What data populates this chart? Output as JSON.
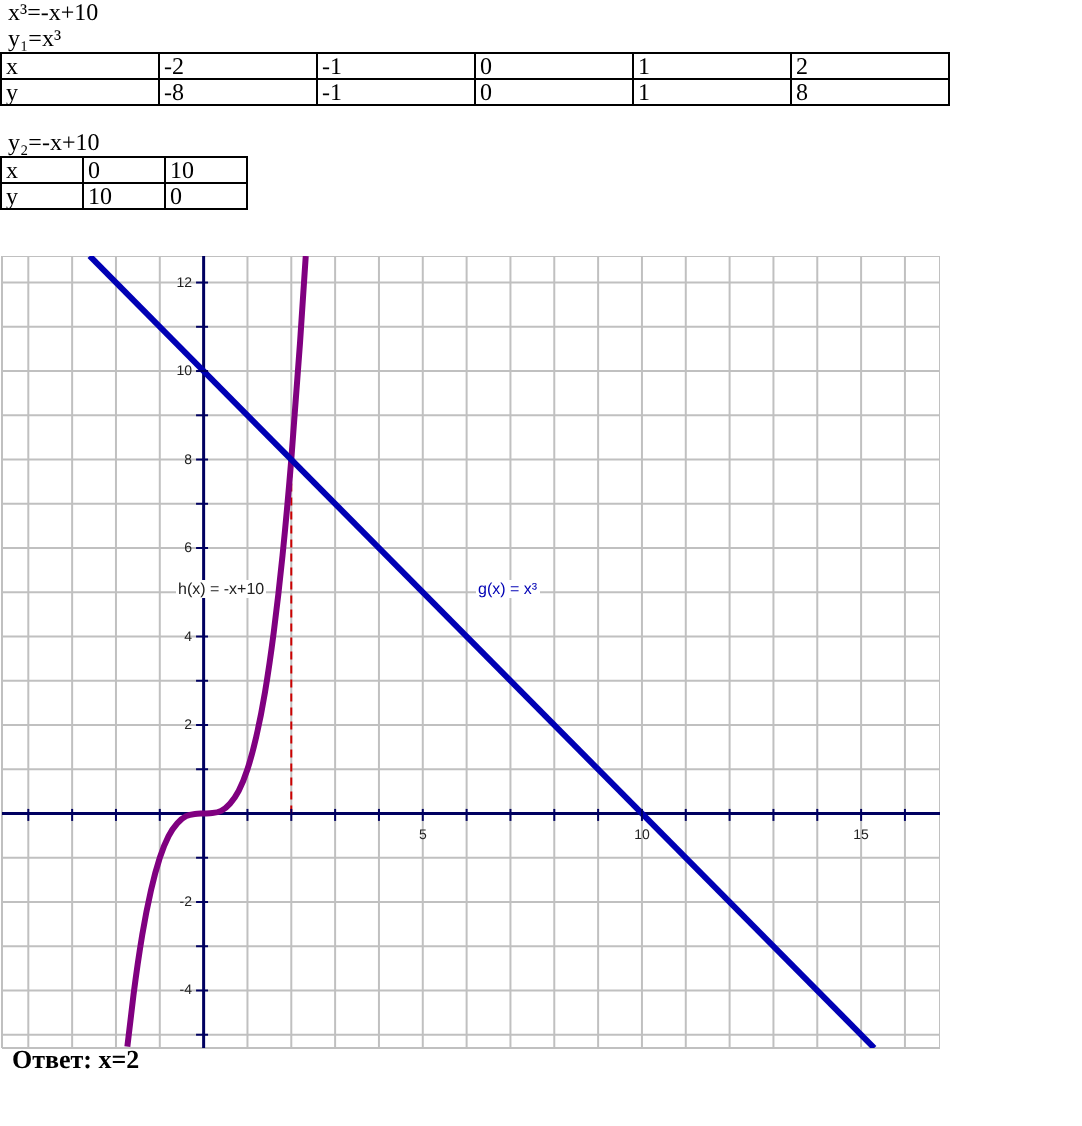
{
  "chart_data": {
    "type": "line",
    "grid": true,
    "legend": false,
    "marker": "none",
    "line_style": "solid",
    "xlim": [
      -4.6,
      16.8
    ],
    "xticks": [
      {
        "value": -4,
        "label": null
      },
      {
        "value": -3,
        "label": null
      },
      {
        "value": -2,
        "label": null
      },
      {
        "value": -1,
        "label": null
      },
      {
        "value": 1,
        "label": null
      },
      {
        "value": 2,
        "label": null
      },
      {
        "value": 3,
        "label": null
      },
      {
        "value": 4,
        "label": null
      },
      5,
      {
        "value": 6,
        "label": null
      },
      {
        "value": 7,
        "label": null
      },
      {
        "value": 8,
        "label": null
      },
      {
        "value": 9,
        "label": null
      },
      10,
      {
        "value": 11,
        "label": null
      },
      {
        "value": 12,
        "label": null
      },
      {
        "value": 13,
        "label": null
      },
      {
        "value": 14,
        "label": null
      },
      15,
      {
        "value": 16,
        "label": null
      }
    ],
    "ylim": [
      -5.3,
      12.6
    ],
    "yticks": [
      {
        "value": -5,
        "label": null
      },
      -4,
      {
        "value": -3,
        "label": null
      },
      -2,
      {
        "value": -1,
        "label": null
      },
      {
        "value": 1,
        "label": null
      },
      2,
      {
        "value": 3,
        "label": null
      },
      4,
      {
        "value": 5,
        "label": null
      },
      6,
      {
        "value": 7,
        "label": null
      },
      8,
      {
        "value": 9,
        "label": null
      },
      10,
      {
        "value": 11,
        "label": null
      },
      12
    ],
    "series": [
      {
        "color": "#800080",
        "x": [
          -1.74,
          -1.6,
          -1.4,
          -1.2,
          -1,
          -0.8,
          -0.6,
          -0.4,
          -0.2,
          0,
          0.2,
          0.4,
          0.6,
          0.8,
          1,
          1.2,
          1.4,
          1.6,
          1.8,
          2,
          2.2,
          2.33
        ],
        "values": [
          -5.27,
          -4.1,
          -2.74,
          -1.73,
          -1,
          -0.51,
          -0.22,
          -0.06,
          -0.01,
          0,
          0.01,
          0.06,
          0.22,
          0.51,
          1,
          1.73,
          2.74,
          4.1,
          5.83,
          8,
          10.65,
          12.6
        ]
      },
      {
        "color": "#0000b4",
        "x": [
          -2.6,
          15.3
        ],
        "values": [
          12.6,
          -5.3
        ]
      }
    ],
    "ref_lines": [
      {
        "axis": "x",
        "value": 2,
        "color": "#cc0000",
        "line_style": "dashed"
      }
    ],
    "annotations": [
      "x³=-x+10",
      "y₁=x³",
      "x",
      "-2",
      "-1",
      "0",
      "1",
      "2",
      "y",
      "-8",
      "-1",
      "0",
      "1",
      "8",
      "y₂=-x+10",
      "x",
      "0",
      "10",
      "y",
      "10",
      "0",
      "h(x) = -x+10",
      "g(x) = x³",
      "Ответ: x=2"
    ]
  }
}
